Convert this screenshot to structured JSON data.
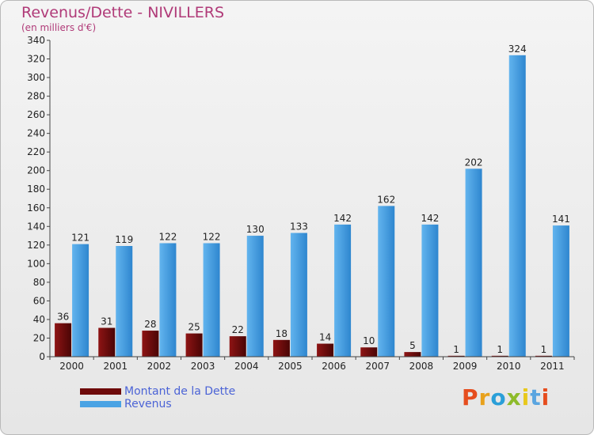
{
  "header": {
    "title": "Revenus/Dette - NIVILLERS",
    "subtitle": "(en milliers d'€)"
  },
  "legend": {
    "items": [
      {
        "label": "Montant de la Dette",
        "color": "#6e0a0a"
      },
      {
        "label": "Revenus",
        "color": "#4aa3e4"
      }
    ]
  },
  "logo": {
    "text": "Proxiti",
    "letter_colors": [
      "#e64d1e",
      "#e8a11c",
      "#2a9fd8",
      "#8dbb2a",
      "#e8c81c",
      "#5aa5e0",
      "#e64d1e"
    ]
  },
  "colors": {
    "debt": "#6e0a0a",
    "revenue": "#4aa3e4",
    "axis": "#444444",
    "grid": "#cfcfcf"
  },
  "chart_data": {
    "type": "bar",
    "title": "Revenus/Dette - NIVILLERS",
    "ylabel": "(en milliers d'€)",
    "categories": [
      "2000",
      "2001",
      "2002",
      "2003",
      "2004",
      "2005",
      "2006",
      "2007",
      "2008",
      "2009",
      "2010",
      "2011"
    ],
    "series": [
      {
        "name": "Montant de la Dette",
        "values": [
          36,
          31,
          28,
          25,
          22,
          18,
          14,
          10,
          5,
          1,
          1,
          1
        ]
      },
      {
        "name": "Revenus",
        "values": [
          121,
          119,
          122,
          122,
          130,
          133,
          142,
          162,
          142,
          202,
          324,
          141
        ]
      }
    ],
    "ylim": [
      0,
      340
    ],
    "yticks": [
      0,
      20,
      40,
      60,
      80,
      100,
      120,
      140,
      160,
      180,
      200,
      220,
      240,
      260,
      280,
      300,
      320,
      340
    ],
    "grid": false,
    "legend": "bottom-left"
  }
}
